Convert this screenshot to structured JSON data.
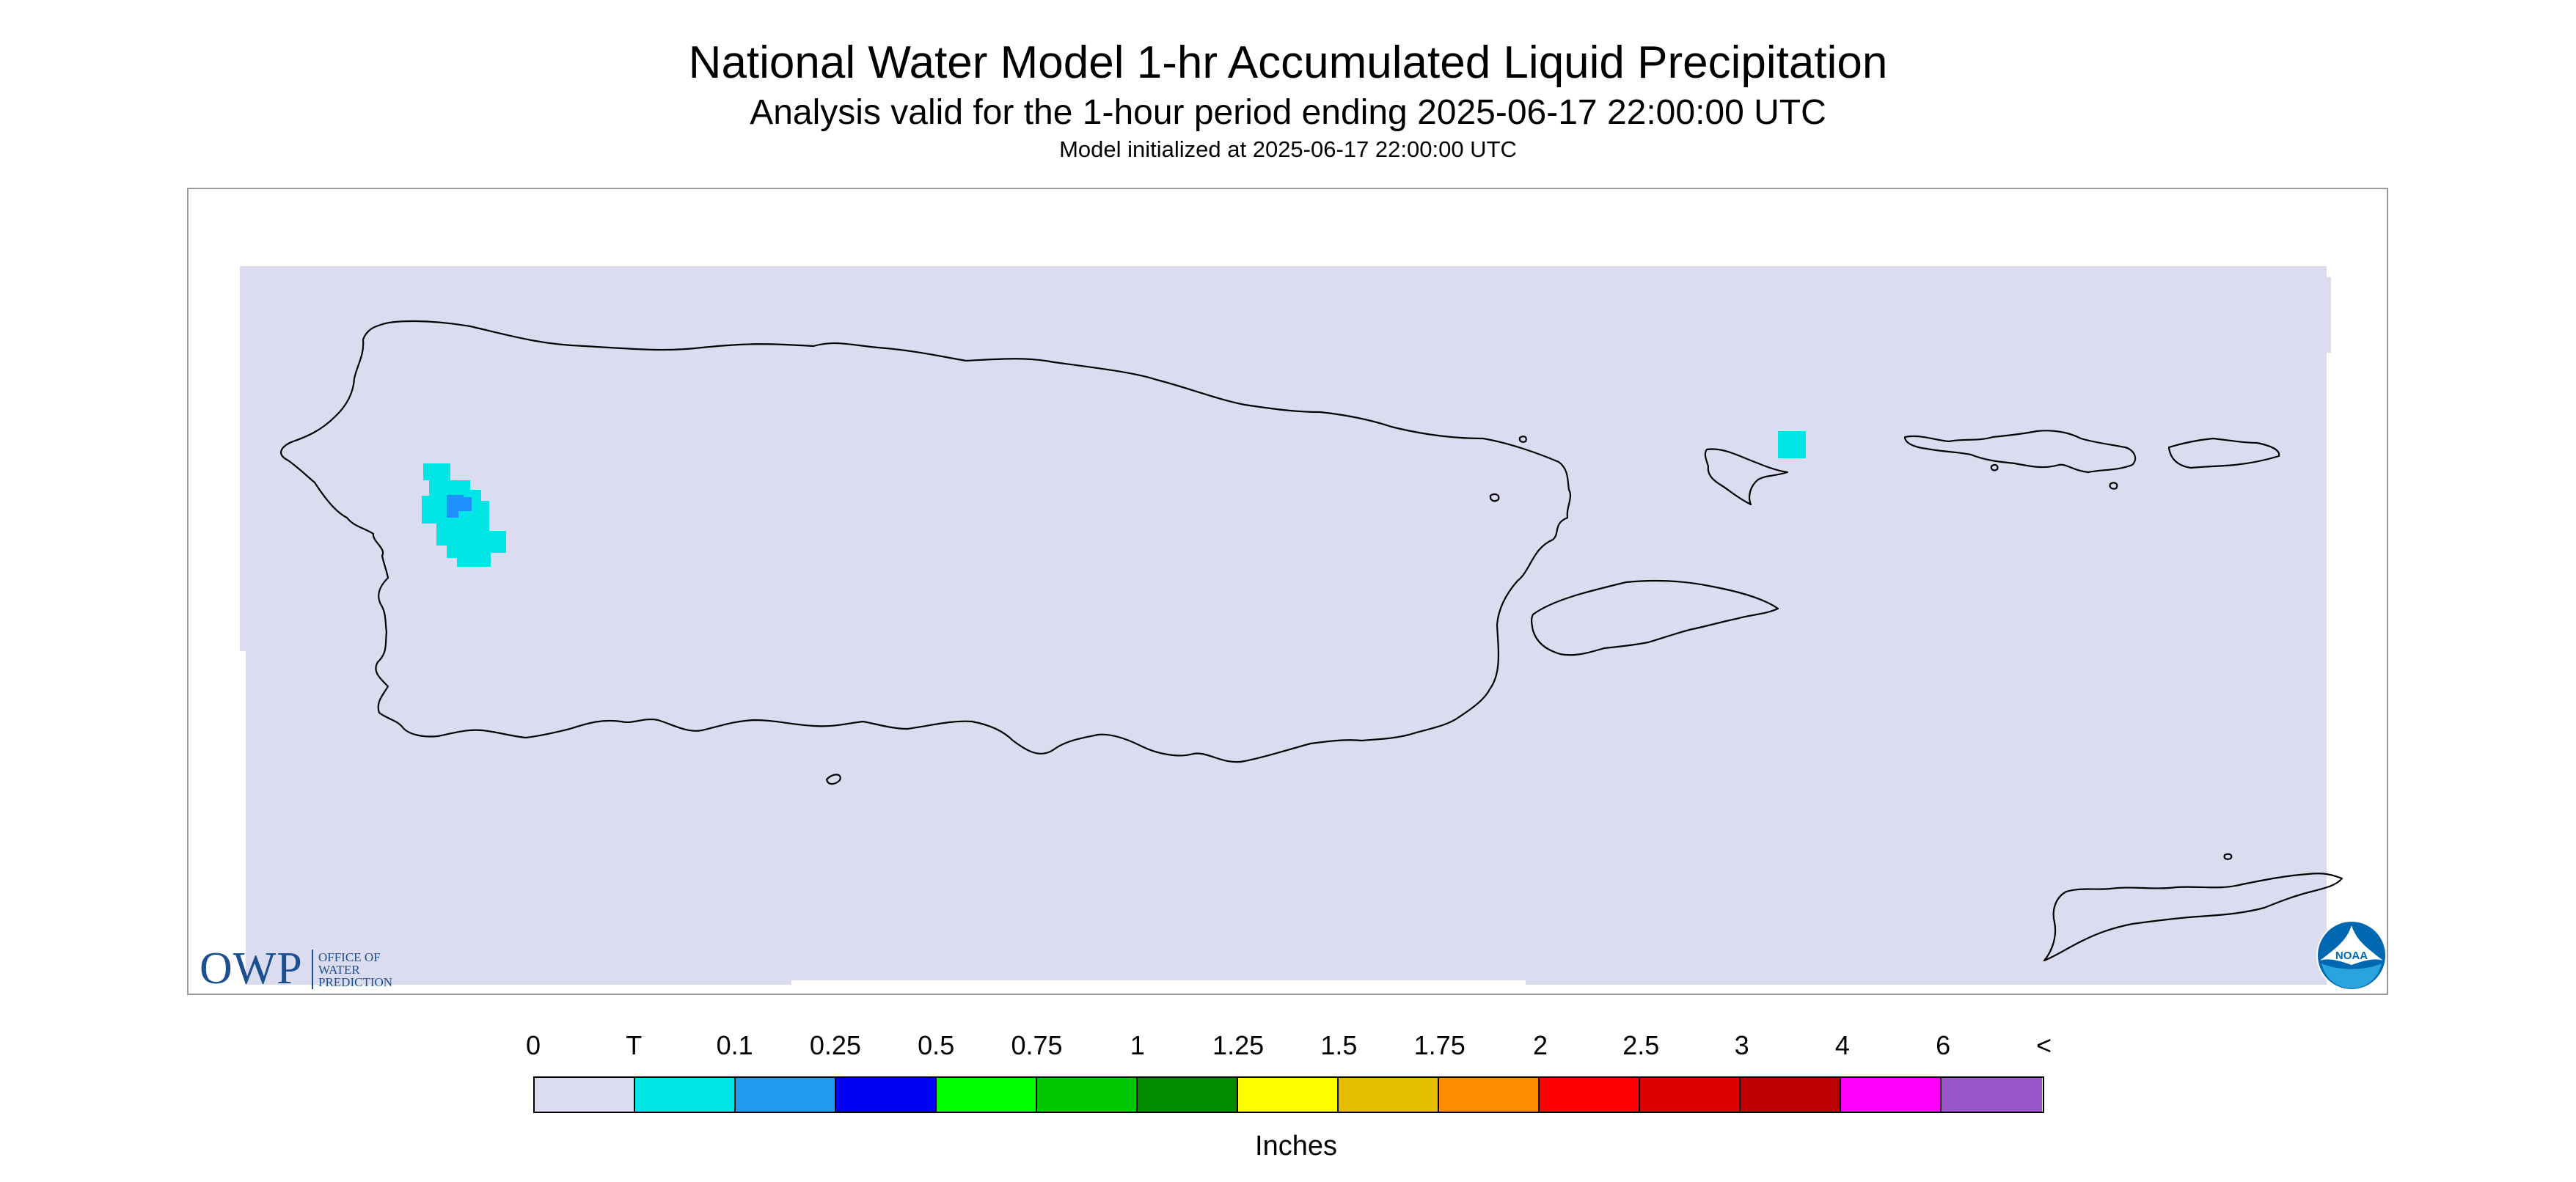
{
  "header": {
    "title": "National Water Model 1-hr Accumulated Liquid Precipitation",
    "subtitle": "Analysis valid for the 1-hour period ending 2025-06-17 22:00:00 UTC",
    "init_line": "Model initialized at 2025-06-17 22:00:00 UTC"
  },
  "map": {
    "region_fill_color": "#dcdcf0",
    "coastline_color": "#000000",
    "precip_areas": [
      {
        "location": "western Puerto Rico",
        "category": "T",
        "color": "#00e5e5"
      },
      {
        "location": "western Puerto Rico (core)",
        "category": "0.1",
        "color": "#1e90ff"
      },
      {
        "location": "St. Thomas",
        "category": "T",
        "color": "#00e5e5"
      }
    ]
  },
  "logos": {
    "owp": {
      "letters": "OWP",
      "line1": "OFFICE OF",
      "line2": "WATER",
      "line3": "PREDICTION",
      "color": "#1b4f8f"
    },
    "noaa": {
      "text": "NOAA",
      "color": "#0067b1"
    }
  },
  "legend": {
    "units": "Inches",
    "tick_labels": [
      "0",
      "T",
      "0.1",
      "0.25",
      "0.5",
      "0.75",
      "1",
      "1.25",
      "1.5",
      "1.75",
      "2",
      "2.5",
      "3",
      "4",
      "6",
      "<"
    ],
    "colors": [
      "#dcdcf0",
      "#00e5e5",
      "#1e9bef",
      "#0000f5",
      "#00ff00",
      "#00c800",
      "#008c00",
      "#ffff00",
      "#e6be00",
      "#ff8c00",
      "#ff0000",
      "#dc0000",
      "#be0000",
      "#ff00ff",
      "#9955cc"
    ]
  }
}
